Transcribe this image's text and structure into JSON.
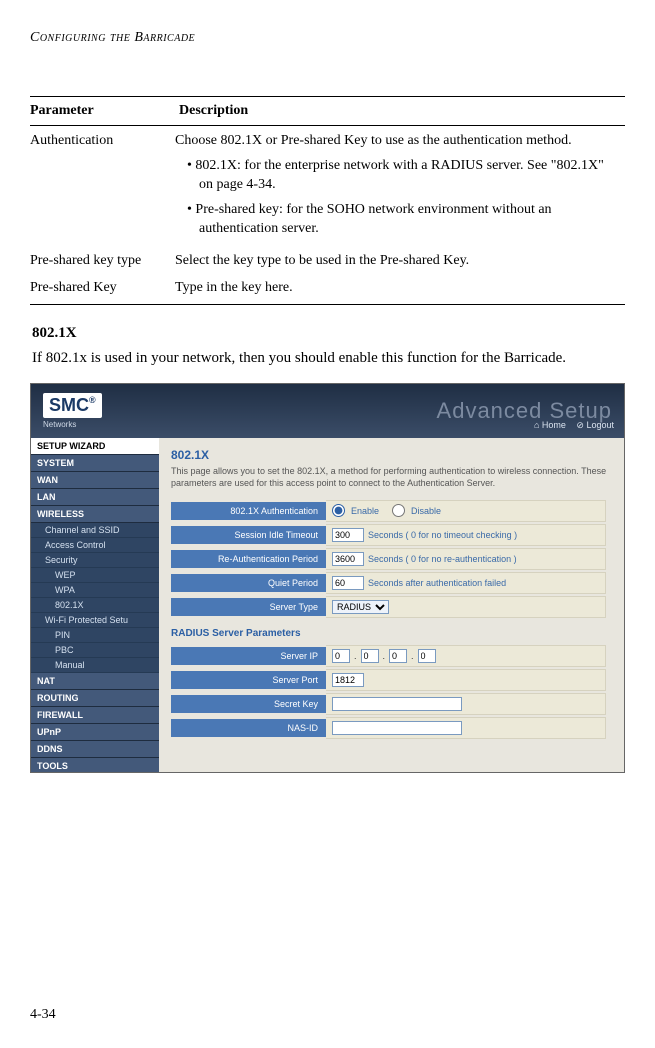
{
  "running_head": "Configuring the Barricade",
  "page_number": "4-34",
  "table": {
    "headers": [
      "Parameter",
      "Description"
    ],
    "rows": [
      {
        "param": "Authentication",
        "desc": "Choose 802.1X or Pre-shared Key to use as the authentication method.",
        "bullets": [
          "802.1X: for the enterprise network with a RADIUS server. See \"802.1X\" on page 4-34.",
          "Pre-shared key: for the SOHO network environment without an authentication server."
        ]
      },
      {
        "param": "Pre-shared key type",
        "desc": "Select the key type to be used in the Pre-shared Key."
      },
      {
        "param": "Pre-shared Key",
        "desc": "Type in the key here."
      }
    ]
  },
  "section_title": "802.1X",
  "section_body": "If 802.1x is used in your network, then you should enable this function for the Barricade.",
  "shot": {
    "logo_text": "SMC",
    "logo_sub": "Networks",
    "adv_text": "Advanced Setup",
    "toplink_home": "Home",
    "toplink_logout": "Logout",
    "sidebar": {
      "wizard": "SETUP WIZARD",
      "items": [
        "SYSTEM",
        "WAN",
        "LAN",
        "WIRELESS"
      ],
      "wireless_subs": [
        "Channel and SSID",
        "Access Control",
        "Security"
      ],
      "security_subs": [
        "WEP",
        "WPA",
        "802.1X"
      ],
      "wireless_subs2": [
        "Wi-Fi Protected Setu"
      ],
      "wps_subs": [
        "PIN",
        "PBC",
        "Manual"
      ],
      "items2": [
        "NAT",
        "ROUTING",
        "FIREWALL",
        "UPnP",
        "DDNS",
        "TOOLS"
      ]
    },
    "panel": {
      "title": "802.1X",
      "desc": "This page allows you to set the 802.1X, a method for performing authentication to wireless connection.  These parameters are used for this access point to connect to the Authentication Server.",
      "rows": [
        {
          "label": "802.1X Authentication",
          "type": "radio",
          "opt_enable": "Enable",
          "opt_disable": "Disable"
        },
        {
          "label": "Session Idle Timeout",
          "type": "text",
          "value": "300",
          "suffix": "Seconds ( 0 for no timeout checking )"
        },
        {
          "label": "Re-Authentication Period",
          "type": "text",
          "value": "3600",
          "suffix": "Seconds ( 0 for no re-authentication )"
        },
        {
          "label": "Quiet Period",
          "type": "text",
          "value": "60",
          "suffix": "Seconds after authentication failed"
        },
        {
          "label": "Server Type",
          "type": "select",
          "value": "RADIUS"
        }
      ],
      "subhead": "RADIUS Server Parameters",
      "rows2": [
        {
          "label": "Server IP",
          "type": "ip",
          "a": "0",
          "b": "0",
          "c": "0",
          "d": "0"
        },
        {
          "label": "Server Port",
          "type": "text",
          "value": "1812"
        },
        {
          "label": "Secret Key",
          "type": "textw",
          "value": ""
        },
        {
          "label": "NAS-ID",
          "type": "textw",
          "value": ""
        }
      ]
    }
  }
}
